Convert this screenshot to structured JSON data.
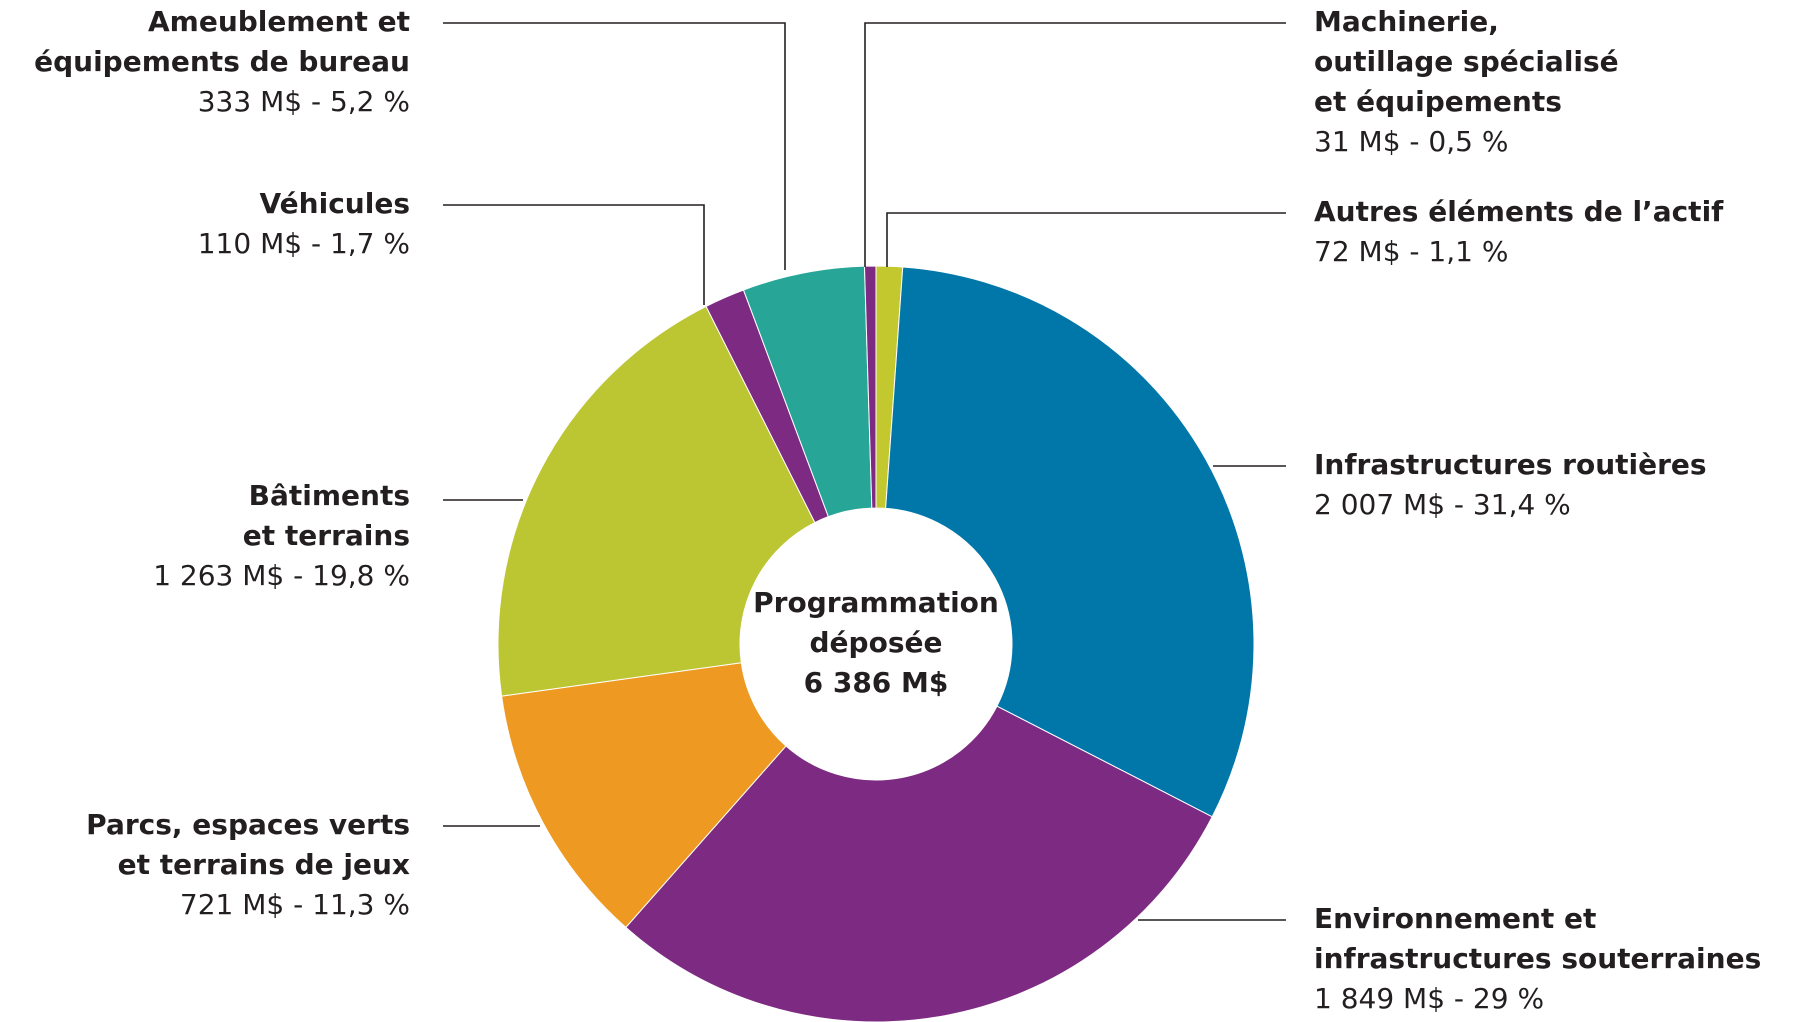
{
  "chart_data": {
    "type": "donut",
    "center_label": [
      "Programmation",
      "déposée",
      "6 386 M$"
    ],
    "categories": [
      [
        "Autres éléments de l’actif"
      ],
      [
        "Infrastructures routières"
      ],
      [
        "Environnement et",
        "infrastructures souterraines"
      ],
      [
        "Parcs, espaces verts",
        "et terrains de jeux"
      ],
      [
        "Bâtiments",
        "et terrains"
      ],
      [
        "Véhicules"
      ],
      [
        "Ameublement et",
        "équipements de bureau"
      ],
      [
        "Machinerie,",
        "outillage spécialisé",
        "et équipements"
      ]
    ],
    "values": [
      72,
      2007,
      1849,
      721,
      1263,
      110,
      333,
      31
    ],
    "value_labels": [
      "72 M$ - 1,1 %",
      "2 007 M$ - 31,4 %",
      "1 849 M$ - 29 %",
      "721 M$ - 11,3 %",
      "1 263 M$ - 19,8 %",
      "110 M$ - 1,7 %",
      "333 M$ - 5,2 %",
      "31 M$ - 0,5 %"
    ],
    "colors": [
      "#c2c82e",
      "#0077a8",
      "#7d2a82",
      "#ee9a22",
      "#bcc532",
      "#7d2a82",
      "#27a597",
      "#7d2a82"
    ]
  }
}
